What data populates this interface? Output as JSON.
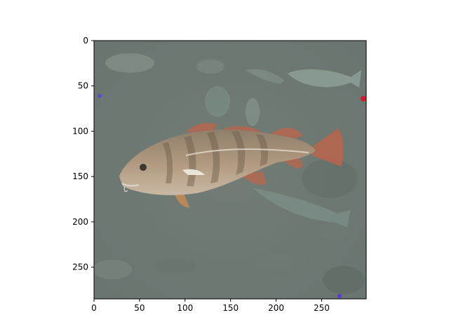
{
  "figure": {
    "background": "#ffffff",
    "axes_color": "#000000"
  },
  "image": {
    "subject": "fish-photo",
    "dominant_color": "#6f7a72",
    "fish_color": "#a9927a",
    "fin_color": "#b5664e",
    "extent_x": [
      0,
      299
    ],
    "extent_y": [
      285,
      0
    ]
  },
  "axes": {
    "x_ticks": [
      0,
      50,
      100,
      150,
      200,
      250
    ],
    "x_tick_labels": [
      "0",
      "50",
      "100",
      "150",
      "200",
      "250"
    ],
    "y_ticks": [
      0,
      50,
      100,
      150,
      200,
      250
    ],
    "y_tick_labels": [
      "0",
      "50",
      "100",
      "150",
      "200",
      "250"
    ]
  }
}
